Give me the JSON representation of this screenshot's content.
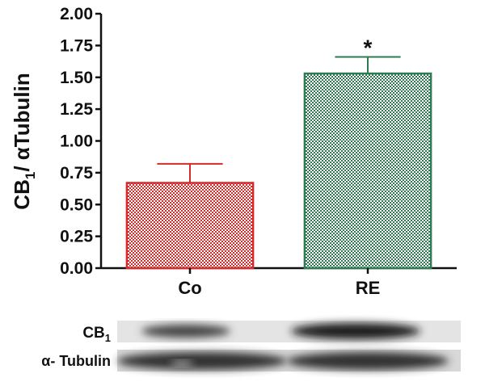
{
  "chart_data": {
    "type": "bar",
    "y_label": {
      "main": "CB",
      "sub": "1",
      "rest": "/ αTubulin"
    },
    "categories": [
      "Co",
      "RE"
    ],
    "values": [
      0.67,
      1.53
    ],
    "errors": [
      0.15,
      0.13
    ],
    "colors": [
      "#d42b2b",
      "#2f7a52"
    ],
    "annotations": [
      null,
      "*"
    ],
    "ylim": [
      0,
      2
    ],
    "yticks": [
      {
        "value": 0,
        "label": "0.00"
      },
      {
        "value": 0.25,
        "label": "0.25"
      },
      {
        "value": 0.5,
        "label": "0.50"
      },
      {
        "value": 0.75,
        "label": "0.75"
      },
      {
        "value": 1,
        "label": "1.00"
      },
      {
        "value": 1.25,
        "label": "1.25"
      },
      {
        "value": 1.5,
        "label": "1.50"
      },
      {
        "value": 1.75,
        "label": "1.75"
      },
      {
        "value": 2,
        "label": "2.00"
      }
    ]
  },
  "blot": {
    "rows": [
      {
        "label": "CB",
        "sub": "1"
      },
      {
        "label": "α- Tubulin"
      }
    ]
  }
}
